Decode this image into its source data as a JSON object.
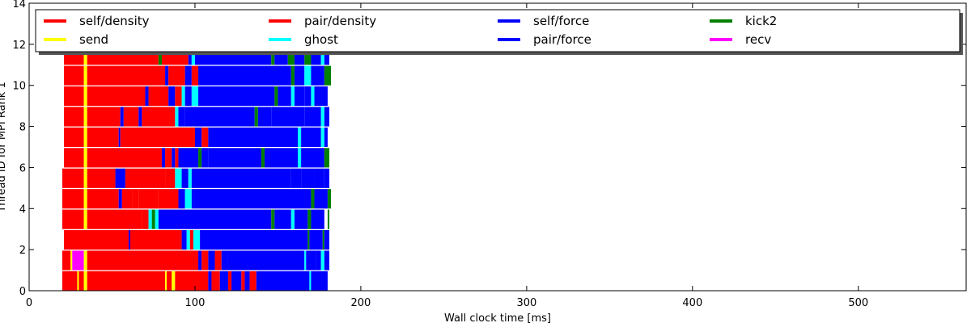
{
  "chart_data": {
    "type": "bar",
    "orientation": "horizontal",
    "title": "",
    "xlabel": "Wall clock time [ms]",
    "ylabel": "Thread ID for MPI Rank 1",
    "xlim": [
      0,
      565
    ],
    "ylim": [
      0,
      14
    ],
    "xticks": [
      0,
      100,
      200,
      300,
      400,
      500
    ],
    "yticks": [
      0,
      2,
      4,
      6,
      8,
      10,
      12,
      14
    ],
    "grid": false,
    "legend": {
      "placement": "top",
      "columns": 5,
      "entries": [
        {
          "label": "self/density",
          "color": "#ff0000"
        },
        {
          "label": "send",
          "color": "#ffff00"
        },
        {
          "label": "pair/density",
          "color": "#ff0000"
        },
        {
          "label": "ghost",
          "color": "#00ffff"
        },
        {
          "label": "self/force",
          "color": "#0000ff"
        },
        {
          "label": "pair/force",
          "color": "#0000ff"
        },
        {
          "label": "kick2",
          "color": "#008000"
        },
        {
          "label": "recv",
          "color": "#ff00ff"
        }
      ]
    },
    "threads": [
      {
        "thread": 0,
        "segments": [
          [
            20,
            29,
            "red"
          ],
          [
            29,
            30,
            "yellow"
          ],
          [
            30,
            33,
            "red"
          ],
          [
            33,
            35,
            "yellow"
          ],
          [
            35,
            82,
            "red"
          ],
          [
            82,
            83,
            "yellow"
          ],
          [
            83,
            86,
            "red"
          ],
          [
            86,
            88,
            "yellow"
          ],
          [
            88,
            108,
            "red"
          ],
          [
            108,
            110,
            "blue"
          ],
          [
            110,
            115,
            "red"
          ],
          [
            115,
            120,
            "blue"
          ],
          [
            120,
            122,
            "red"
          ],
          [
            122,
            128,
            "blue"
          ],
          [
            128,
            130,
            "red"
          ],
          [
            130,
            133,
            "blue"
          ],
          [
            133,
            137,
            "red"
          ],
          [
            137,
            169,
            "blue"
          ],
          [
            169,
            170,
            "cyan"
          ],
          [
            170,
            180,
            "blue"
          ]
        ]
      },
      {
        "thread": 1,
        "segments": [
          [
            20,
            25,
            "red"
          ],
          [
            25,
            26,
            "yellow"
          ],
          [
            26,
            33,
            "magenta"
          ],
          [
            33,
            35,
            "yellow"
          ],
          [
            35,
            102,
            "red"
          ],
          [
            102,
            104,
            "blue"
          ],
          [
            104,
            108,
            "red"
          ],
          [
            108,
            112,
            "blue"
          ],
          [
            112,
            116,
            "red"
          ],
          [
            116,
            120,
            "blue"
          ],
          [
            120,
            166,
            "blue"
          ],
          [
            166,
            167,
            "cyan"
          ],
          [
            167,
            173,
            "blue"
          ],
          [
            173,
            176,
            "blue"
          ],
          [
            176,
            178,
            "cyan"
          ],
          [
            178,
            181,
            "blue"
          ]
        ]
      },
      {
        "thread": 2,
        "segments": [
          [
            21,
            60,
            "red"
          ],
          [
            60,
            61,
            "blue"
          ],
          [
            61,
            92,
            "red"
          ],
          [
            92,
            95,
            "blue"
          ],
          [
            95,
            97,
            "cyan"
          ],
          [
            97,
            99,
            "red"
          ],
          [
            99,
            103,
            "cyan"
          ],
          [
            103,
            168,
            "blue"
          ],
          [
            168,
            169,
            "green"
          ],
          [
            169,
            177,
            "blue"
          ],
          [
            177,
            178,
            "green"
          ],
          [
            178,
            181,
            "blue"
          ]
        ]
      },
      {
        "thread": 3,
        "segments": [
          [
            20,
            33,
            "red"
          ],
          [
            33,
            35,
            "yellow"
          ],
          [
            35,
            68,
            "red"
          ],
          [
            68,
            72,
            "red"
          ],
          [
            72,
            74,
            "cyan"
          ],
          [
            74,
            76,
            "green"
          ],
          [
            76,
            78,
            "cyan"
          ],
          [
            78,
            146,
            "blue"
          ],
          [
            146,
            148,
            "green"
          ],
          [
            148,
            158,
            "blue"
          ],
          [
            158,
            160,
            "cyan"
          ],
          [
            160,
            168,
            "blue"
          ],
          [
            168,
            170,
            "green"
          ],
          [
            170,
            178,
            "blue"
          ],
          [
            180,
            181,
            "green"
          ]
        ]
      },
      {
        "thread": 4,
        "segments": [
          [
            20,
            33,
            "red"
          ],
          [
            33,
            35,
            "yellow"
          ],
          [
            35,
            54,
            "red"
          ],
          [
            54,
            56,
            "blue"
          ],
          [
            56,
            62,
            "red"
          ],
          [
            62,
            66,
            "red"
          ],
          [
            66,
            78,
            "red"
          ],
          [
            78,
            90,
            "red"
          ],
          [
            90,
            94,
            "blue"
          ],
          [
            94,
            98,
            "cyan"
          ],
          [
            98,
            100,
            "blue"
          ],
          [
            100,
            170,
            "blue"
          ],
          [
            170,
            172,
            "green"
          ],
          [
            172,
            180,
            "blue"
          ],
          [
            180,
            182,
            "green"
          ]
        ]
      },
      {
        "thread": 5,
        "segments": [
          [
            20,
            33,
            "red"
          ],
          [
            33,
            35,
            "yellow"
          ],
          [
            35,
            52,
            "red"
          ],
          [
            52,
            58,
            "blue"
          ],
          [
            58,
            82,
            "red"
          ],
          [
            82,
            88,
            "red"
          ],
          [
            88,
            92,
            "cyan"
          ],
          [
            92,
            96,
            "blue"
          ],
          [
            96,
            98,
            "cyan"
          ],
          [
            98,
            158,
            "blue"
          ],
          [
            158,
            164,
            "blue"
          ],
          [
            164,
            172,
            "blue"
          ],
          [
            172,
            178,
            "blue"
          ],
          [
            178,
            181,
            "blue"
          ]
        ]
      },
      {
        "thread": 6,
        "segments": [
          [
            21,
            33,
            "red"
          ],
          [
            33,
            35,
            "yellow"
          ],
          [
            35,
            80,
            "red"
          ],
          [
            80,
            82,
            "blue"
          ],
          [
            82,
            86,
            "red"
          ],
          [
            86,
            88,
            "blue"
          ],
          [
            88,
            90,
            "red"
          ],
          [
            90,
            102,
            "blue"
          ],
          [
            102,
            104,
            "green"
          ],
          [
            104,
            108,
            "blue"
          ],
          [
            108,
            140,
            "blue"
          ],
          [
            140,
            142,
            "green"
          ],
          [
            142,
            162,
            "blue"
          ],
          [
            162,
            164,
            "cyan"
          ],
          [
            164,
            178,
            "blue"
          ],
          [
            178,
            181,
            "green"
          ]
        ]
      },
      {
        "thread": 7,
        "segments": [
          [
            21,
            33,
            "red"
          ],
          [
            33,
            35,
            "yellow"
          ],
          [
            35,
            54,
            "red"
          ],
          [
            54,
            55,
            "blue"
          ],
          [
            55,
            100,
            "red"
          ],
          [
            100,
            104,
            "blue"
          ],
          [
            104,
            108,
            "red"
          ],
          [
            108,
            162,
            "blue"
          ],
          [
            162,
            164,
            "cyan"
          ],
          [
            164,
            176,
            "blue"
          ],
          [
            176,
            178,
            "cyan"
          ],
          [
            178,
            180,
            "blue"
          ]
        ]
      },
      {
        "thread": 8,
        "segments": [
          [
            21,
            33,
            "red"
          ],
          [
            33,
            35,
            "yellow"
          ],
          [
            35,
            55,
            "red"
          ],
          [
            55,
            57,
            "blue"
          ],
          [
            57,
            66,
            "red"
          ],
          [
            66,
            68,
            "blue"
          ],
          [
            68,
            88,
            "red"
          ],
          [
            88,
            90,
            "cyan"
          ],
          [
            90,
            94,
            "blue"
          ],
          [
            94,
            136,
            "blue"
          ],
          [
            136,
            138,
            "green"
          ],
          [
            138,
            146,
            "blue"
          ],
          [
            146,
            166,
            "blue"
          ],
          [
            166,
            176,
            "blue"
          ],
          [
            176,
            178,
            "cyan"
          ],
          [
            178,
            181,
            "blue"
          ]
        ]
      },
      {
        "thread": 9,
        "segments": [
          [
            21,
            33,
            "red"
          ],
          [
            33,
            35,
            "yellow"
          ],
          [
            35,
            70,
            "red"
          ],
          [
            70,
            72,
            "blue"
          ],
          [
            72,
            84,
            "red"
          ],
          [
            84,
            88,
            "blue"
          ],
          [
            88,
            92,
            "red"
          ],
          [
            92,
            94,
            "cyan"
          ],
          [
            94,
            98,
            "blue"
          ],
          [
            98,
            102,
            "cyan"
          ],
          [
            102,
            148,
            "blue"
          ],
          [
            148,
            150,
            "green"
          ],
          [
            150,
            158,
            "blue"
          ],
          [
            158,
            160,
            "cyan"
          ],
          [
            160,
            166,
            "blue"
          ],
          [
            166,
            170,
            "blue"
          ],
          [
            170,
            172,
            "cyan"
          ],
          [
            172,
            180,
            "blue"
          ]
        ]
      },
      {
        "thread": 10,
        "segments": [
          [
            21,
            33,
            "red"
          ],
          [
            33,
            35,
            "yellow"
          ],
          [
            35,
            82,
            "red"
          ],
          [
            82,
            84,
            "blue"
          ],
          [
            84,
            94,
            "red"
          ],
          [
            94,
            98,
            "blue"
          ],
          [
            98,
            102,
            "red"
          ],
          [
            102,
            158,
            "blue"
          ],
          [
            158,
            160,
            "green"
          ],
          [
            160,
            166,
            "blue"
          ],
          [
            166,
            170,
            "cyan"
          ],
          [
            170,
            178,
            "blue"
          ],
          [
            178,
            182,
            "green"
          ]
        ]
      },
      {
        "thread": 11,
        "segments": [
          [
            21,
            33,
            "red"
          ],
          [
            33,
            35,
            "yellow"
          ],
          [
            35,
            78,
            "red"
          ],
          [
            78,
            80,
            "green"
          ],
          [
            80,
            96,
            "red"
          ],
          [
            96,
            98,
            "blue"
          ],
          [
            98,
            100,
            "cyan"
          ],
          [
            100,
            146,
            "blue"
          ],
          [
            146,
            148,
            "green"
          ],
          [
            148,
            156,
            "blue"
          ],
          [
            156,
            160,
            "green"
          ],
          [
            160,
            166,
            "blue"
          ],
          [
            166,
            170,
            "green"
          ],
          [
            170,
            176,
            "blue"
          ],
          [
            176,
            178,
            "cyan"
          ],
          [
            178,
            181,
            "blue"
          ]
        ]
      }
    ]
  }
}
